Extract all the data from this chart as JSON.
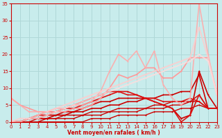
{
  "xlabel": "Vent moyen/en rafales ( km/h )",
  "xlim": [
    0,
    23
  ],
  "ylim": [
    0,
    35
  ],
  "xticks": [
    0,
    1,
    2,
    3,
    4,
    5,
    6,
    7,
    8,
    9,
    10,
    11,
    12,
    13,
    14,
    15,
    16,
    17,
    18,
    19,
    20,
    21,
    22,
    23
  ],
  "yticks": [
    0,
    5,
    10,
    15,
    20,
    25,
    30,
    35
  ],
  "background_color": "#c8ecec",
  "grid_color": "#b0d8d8",
  "series": [
    {
      "x": [
        0,
        1,
        2,
        3,
        4,
        5,
        6,
        7,
        8,
        9,
        10,
        11,
        12,
        13,
        14,
        15,
        16,
        17,
        18,
        19,
        20,
        21,
        22,
        23
      ],
      "y": [
        0,
        0,
        0,
        0,
        0,
        0,
        0,
        0,
        0,
        1,
        1,
        1,
        2,
        2,
        2,
        2,
        3,
        3,
        3,
        4,
        4,
        5,
        4,
        4
      ],
      "color": "#cc0000",
      "alpha": 1.0,
      "lw": 1.0
    },
    {
      "x": [
        0,
        1,
        2,
        3,
        4,
        5,
        6,
        7,
        8,
        9,
        10,
        11,
        12,
        13,
        14,
        15,
        16,
        17,
        18,
        19,
        20,
        21,
        22,
        23
      ],
      "y": [
        0,
        0,
        0,
        0,
        1,
        1,
        1,
        1,
        2,
        2,
        2,
        3,
        3,
        3,
        3,
        4,
        4,
        4,
        5,
        5,
        6,
        6,
        4,
        4
      ],
      "color": "#cc0000",
      "alpha": 1.0,
      "lw": 1.0
    },
    {
      "x": [
        0,
        1,
        2,
        3,
        4,
        5,
        6,
        7,
        8,
        9,
        10,
        11,
        12,
        13,
        14,
        15,
        16,
        17,
        18,
        19,
        20,
        21,
        22,
        23
      ],
      "y": [
        0,
        0,
        0,
        1,
        1,
        1,
        2,
        2,
        2,
        3,
        3,
        3,
        4,
        4,
        4,
        4,
        5,
        5,
        6,
        6,
        6,
        8,
        4,
        4
      ],
      "color": "#cc0000",
      "alpha": 1.0,
      "lw": 1.0
    },
    {
      "x": [
        0,
        1,
        2,
        3,
        4,
        5,
        6,
        7,
        8,
        9,
        10,
        11,
        12,
        13,
        14,
        15,
        16,
        17,
        18,
        19,
        20,
        21,
        22,
        23
      ],
      "y": [
        0,
        0,
        1,
        1,
        1,
        2,
        2,
        3,
        3,
        4,
        4,
        5,
        5,
        6,
        6,
        7,
        7,
        8,
        8,
        9,
        9,
        14,
        4,
        4
      ],
      "color": "#cc0000",
      "alpha": 1.0,
      "lw": 1.2
    },
    {
      "x": [
        0,
        1,
        2,
        3,
        4,
        5,
        6,
        7,
        8,
        9,
        10,
        11,
        12,
        13,
        14,
        15,
        16,
        17,
        18,
        19,
        20,
        21,
        22,
        23
      ],
      "y": [
        0,
        0,
        1,
        1,
        2,
        2,
        3,
        3,
        4,
        5,
        6,
        6,
        7,
        7,
        7,
        7,
        6,
        5,
        4,
        1,
        2,
        15,
        8,
        4
      ],
      "color": "#cc0000",
      "alpha": 1.0,
      "lw": 1.2
    },
    {
      "x": [
        0,
        1,
        2,
        3,
        4,
        5,
        6,
        7,
        8,
        9,
        10,
        11,
        12,
        13,
        14,
        15,
        16,
        17,
        18,
        19,
        20,
        21,
        22,
        23
      ],
      "y": [
        0,
        0,
        1,
        2,
        2,
        3,
        4,
        4,
        5,
        6,
        7,
        8,
        9,
        9,
        8,
        7,
        6,
        5,
        4,
        0,
        2,
        8,
        4,
        4
      ],
      "color": "#dd1111",
      "alpha": 1.0,
      "lw": 1.2
    },
    {
      "x": [
        0,
        1,
        2,
        3,
        4,
        5,
        6,
        7,
        8,
        9,
        10,
        11,
        12,
        13,
        14,
        15,
        16,
        17,
        18,
        19,
        20,
        21,
        22,
        23
      ],
      "y": [
        0,
        0,
        1,
        2,
        3,
        3,
        4,
        5,
        6,
        7,
        8,
        9,
        9,
        8,
        8,
        7,
        7,
        6,
        6,
        6,
        7,
        6,
        4,
        4
      ],
      "color": "#dd1111",
      "alpha": 1.0,
      "lw": 1.2
    },
    {
      "x": [
        0,
        1,
        2,
        3,
        4,
        5,
        6,
        7,
        8,
        9,
        10,
        11,
        12,
        13,
        14,
        15,
        16,
        17,
        18,
        19,
        20,
        21,
        22,
        23
      ],
      "y": [
        7,
        5,
        4,
        3,
        3,
        3,
        3,
        4,
        4,
        5,
        7,
        10,
        14,
        13,
        14,
        16,
        16,
        13,
        13,
        15,
        19,
        19,
        19,
        8
      ],
      "color": "#ff9999",
      "alpha": 1.0,
      "lw": 1.2
    },
    {
      "x": [
        0,
        1,
        2,
        3,
        4,
        5,
        6,
        7,
        8,
        9,
        10,
        11,
        12,
        13,
        14,
        15,
        16,
        17,
        18,
        19,
        20,
        21,
        22,
        23
      ],
      "y": [
        7,
        5,
        3,
        3,
        3,
        4,
        4,
        5,
        5,
        6,
        9,
        15,
        20,
        18,
        21,
        16,
        21,
        11,
        7,
        5,
        7,
        35,
        20,
        8
      ],
      "color": "#ffaaaa",
      "alpha": 0.9,
      "lw": 1.2
    },
    {
      "x": [
        0,
        1,
        2,
        3,
        4,
        5,
        6,
        7,
        8,
        9,
        10,
        11,
        12,
        13,
        14,
        15,
        16,
        17,
        18,
        19,
        20,
        21,
        22,
        23
      ],
      "y": [
        0,
        1,
        1,
        2,
        3,
        4,
        5,
        6,
        7,
        8,
        9,
        10,
        11,
        12,
        13,
        14,
        15,
        16,
        17,
        18,
        19,
        28,
        19,
        8
      ],
      "color": "#ffcccc",
      "alpha": 0.8,
      "lw": 1.5
    },
    {
      "x": [
        0,
        1,
        2,
        3,
        4,
        5,
        6,
        7,
        8,
        9,
        10,
        11,
        12,
        13,
        14,
        15,
        16,
        17,
        18,
        19,
        20,
        21,
        22,
        23
      ],
      "y": [
        0,
        0,
        1,
        1,
        2,
        3,
        4,
        5,
        6,
        7,
        8,
        9,
        10,
        11,
        12,
        13,
        14,
        15,
        16,
        17,
        18,
        20,
        18,
        8
      ],
      "color": "#ffdddd",
      "alpha": 0.75,
      "lw": 1.5
    }
  ]
}
